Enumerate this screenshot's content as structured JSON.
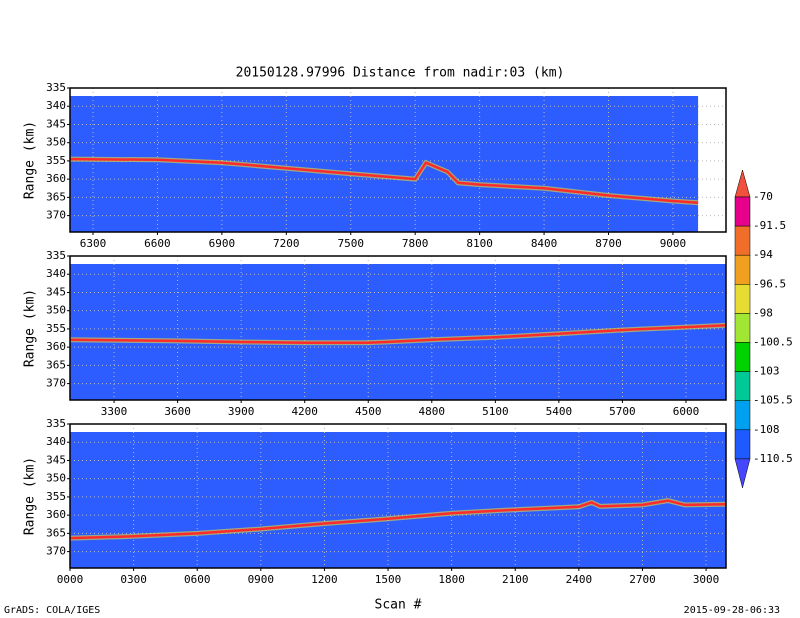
{
  "title": "20150128.97996    Distance from nadir:03 (km)",
  "footer_left": "GrADS: COLA/IGES",
  "footer_right": "2015-09-28-06:33",
  "colorbar": {
    "levels": [
      -70,
      -91.5,
      -94,
      -96.5,
      -98,
      -100.5,
      -103,
      -105.5,
      -108,
      -110.5
    ],
    "colors": [
      "#f0503c",
      "#e6008c",
      "#f06e28",
      "#f0a01e",
      "#e6dc32",
      "#a0e632",
      "#00d200",
      "#00c896",
      "#00a0f0",
      "#1e5aff",
      "#4646ff"
    ]
  },
  "chart_data": [
    {
      "type": "line",
      "ylabel": "Range (km)",
      "field_color": "#2d5cff",
      "color": "#ff2a2a",
      "grid": true,
      "xlim": [
        6193,
        9247
      ],
      "ylim": [
        374.5,
        335
      ],
      "xticks": [
        6300,
        6600,
        6900,
        7200,
        7500,
        7800,
        8100,
        8400,
        8700,
        9000
      ],
      "yticks": [
        335,
        340,
        345,
        350,
        355,
        360,
        365,
        370
      ],
      "x": [
        6193,
        6600,
        6900,
        7200,
        7500,
        7800,
        7850,
        7950,
        8000,
        8100,
        8400,
        8700,
        9000,
        9117
      ],
      "values": [
        354.5,
        354.7,
        355.5,
        357,
        358.5,
        360,
        355.5,
        358,
        361,
        361.5,
        362.5,
        364.5,
        366,
        366.5
      ]
    },
    {
      "type": "line",
      "ylabel": "Range (km)",
      "field_color": "#2d5cff",
      "color": "#ff2a2a",
      "grid": true,
      "xlim": [
        3092,
        6189
      ],
      "ylim": [
        374.5,
        335
      ],
      "xticks": [
        3300,
        3600,
        3900,
        4200,
        4500,
        4800,
        5100,
        5400,
        5700,
        6000
      ],
      "yticks": [
        335,
        340,
        345,
        350,
        355,
        360,
        365,
        370
      ],
      "x": [
        3092,
        3600,
        3900,
        4200,
        4500,
        4800,
        5100,
        5400,
        5700,
        6000,
        6189
      ],
      "values": [
        358,
        358.3,
        358.6,
        358.8,
        358.8,
        358,
        357.3,
        356.3,
        355.3,
        354.5,
        354
      ]
    },
    {
      "type": "line",
      "ylabel": "Range (km)",
      "xlabel": "Scan #",
      "field_color": "#2d5cff",
      "color": "#ff2a2a",
      "grid": true,
      "xlim": [
        0,
        3094
      ],
      "ylim": [
        374.5,
        335
      ],
      "xticks": [
        {
          "value": 0,
          "label": "0000"
        },
        {
          "value": 300,
          "label": "0300"
        },
        {
          "value": 600,
          "label": "0600"
        },
        {
          "value": 900,
          "label": "0900"
        },
        1200,
        1500,
        1800,
        2100,
        2400,
        2700,
        3000
      ],
      "yticks": [
        335,
        340,
        345,
        350,
        355,
        360,
        365,
        370
      ],
      "x": [
        0,
        300,
        600,
        900,
        1200,
        1500,
        1800,
        2100,
        2400,
        2460,
        2500,
        2700,
        2820,
        2900,
        3094
      ],
      "values": [
        366.3,
        365.8,
        365,
        363.8,
        362.3,
        361,
        359.5,
        358.5,
        357.7,
        356.5,
        357.6,
        357.2,
        356,
        357.2,
        357
      ]
    }
  ]
}
